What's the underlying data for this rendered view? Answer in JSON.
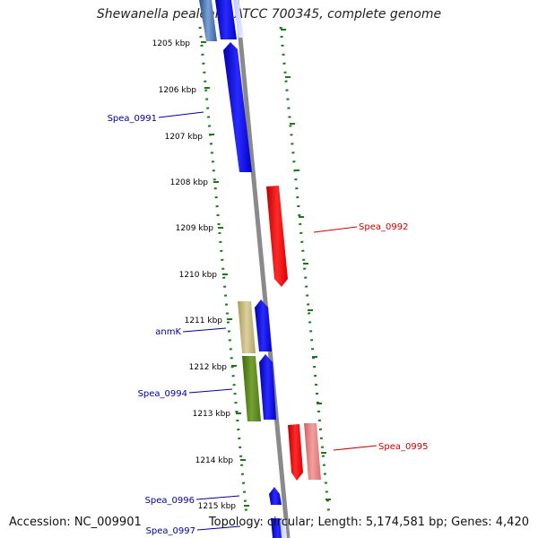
{
  "title": "Shewanella pealeana ATCC 700345, complete genome",
  "footer": {
    "accession": "Accession: NC_009901",
    "topology": "Topology: circular; Length: 5,174,581 bp; Genes: 4,420"
  },
  "colors": {
    "backbone": "#8a8a8a",
    "ticks": "#1a7a1a",
    "forward_gene": "#0000ee",
    "reverse_gene": "#ee0000",
    "label_blue": "#000099",
    "label_red": "#cc0000"
  },
  "ticks": [
    "1205 kbp",
    "1206 kbp",
    "1207 kbp",
    "1208 kbp",
    "1209 kbp",
    "1210 kbp",
    "1211 kbp",
    "1212 kbp",
    "1213 kbp",
    "1214 kbp",
    "1215 kbp"
  ],
  "gene_labels": [
    {
      "name": "Spea_0991",
      "color": "blue"
    },
    {
      "name": "Spea_0992",
      "color": "red"
    },
    {
      "name": "anmK",
      "color": "blue"
    },
    {
      "name": "Spea_0994",
      "color": "blue"
    },
    {
      "name": "Spea_0995",
      "color": "red"
    },
    {
      "name": "Spea_0996",
      "color": "blue"
    },
    {
      "name": "Spea_0997",
      "color": "blue"
    }
  ]
}
